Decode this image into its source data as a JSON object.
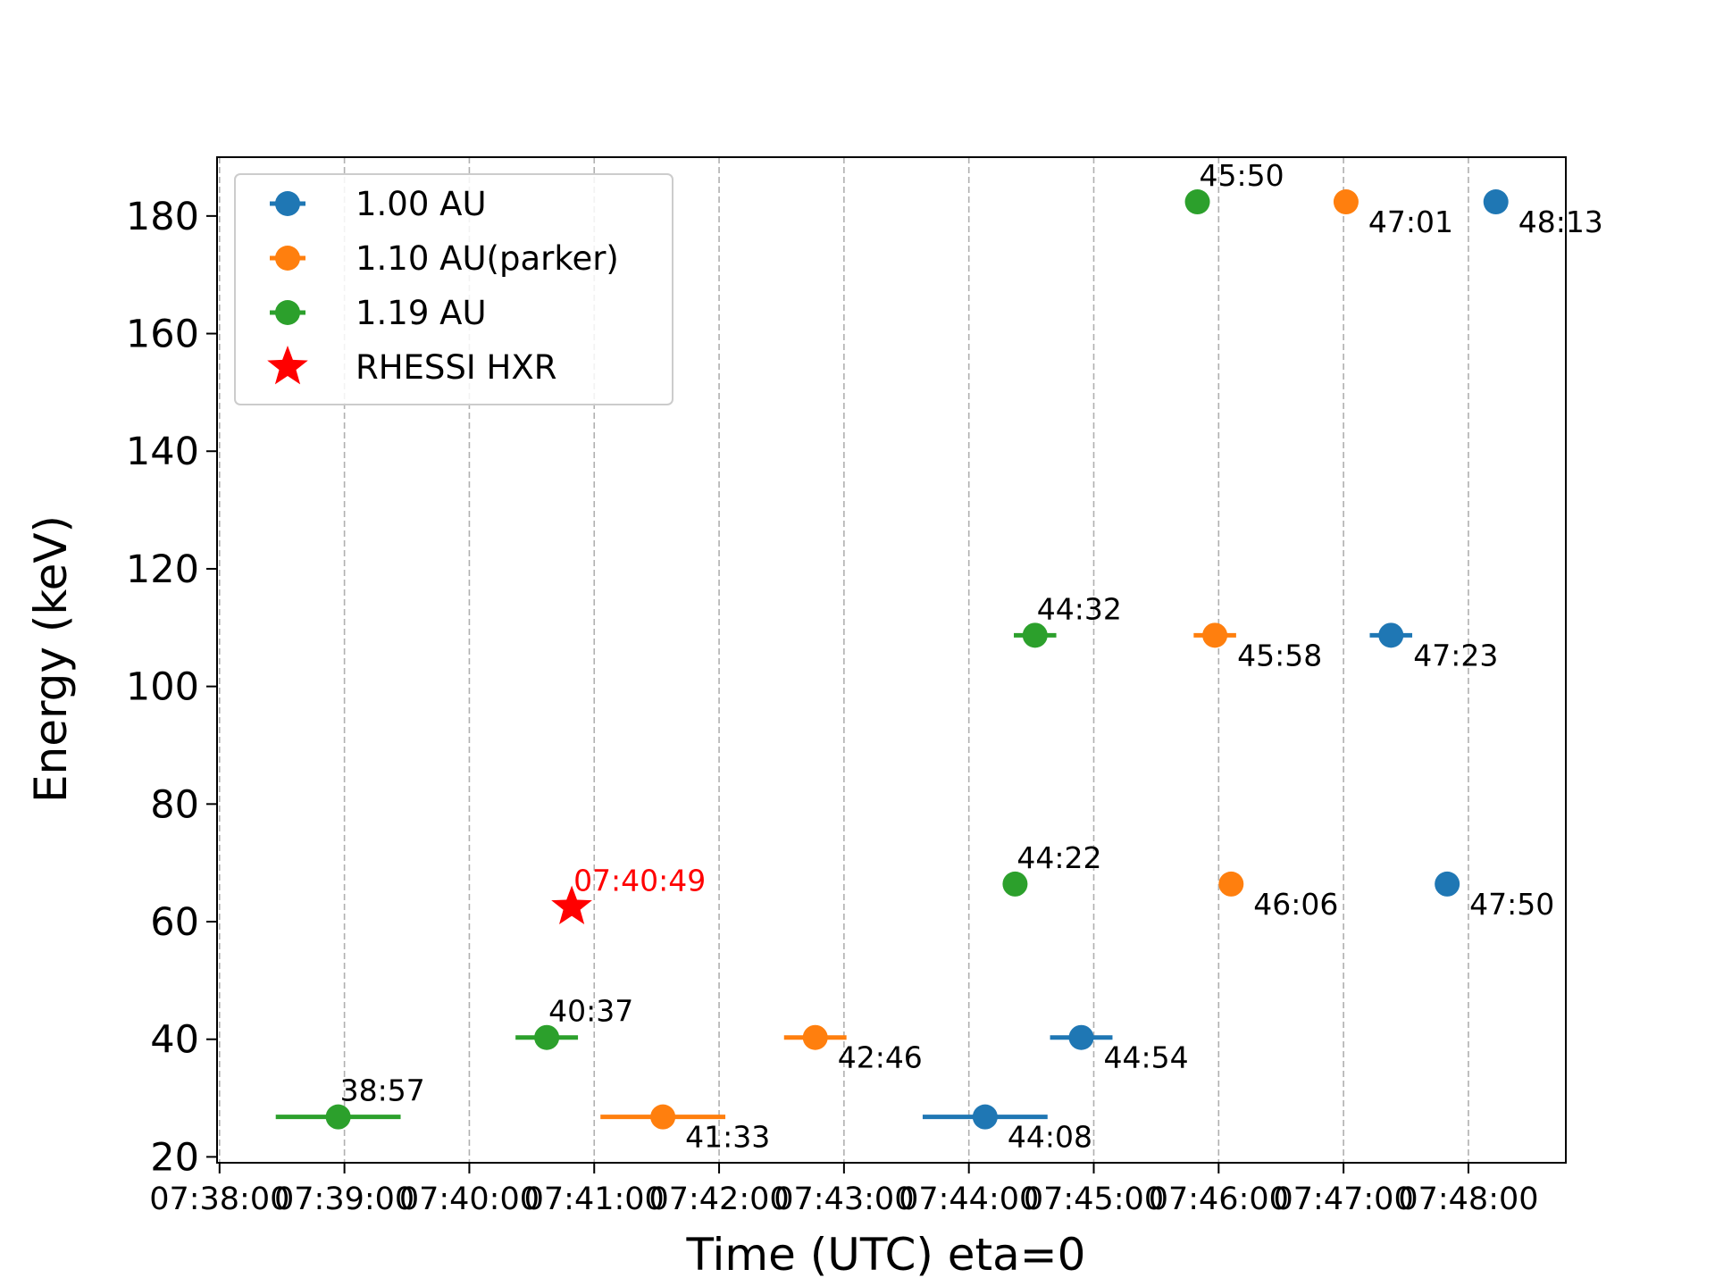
{
  "chart_data": {
    "type": "scatter",
    "title": "",
    "xlabel": "Time (UTC) eta=0",
    "ylabel": "Energy (keV)",
    "xlim": [
      -0.02,
      10.78
    ],
    "ylim": [
      19,
      190
    ],
    "grid": "x-dashed",
    "legend_position": "top-left",
    "xticks": [
      {
        "value": 0,
        "label": "07:38:00"
      },
      {
        "value": 1,
        "label": "07:39:00"
      },
      {
        "value": 2,
        "label": "07:40:00"
      },
      {
        "value": 3,
        "label": "07:41:00"
      },
      {
        "value": 4,
        "label": "07:42:00"
      },
      {
        "value": 5,
        "label": "07:43:00"
      },
      {
        "value": 6,
        "label": "07:44:00"
      },
      {
        "value": 7,
        "label": "07:45:00"
      },
      {
        "value": 8,
        "label": "07:46:00"
      },
      {
        "value": 9,
        "label": "07:47:00"
      },
      {
        "value": 10,
        "label": "07:48:00"
      }
    ],
    "yticks": [
      20,
      40,
      60,
      80,
      100,
      120,
      140,
      160,
      180
    ],
    "x_unit": "minutes after 07:38:00",
    "series": [
      {
        "name": "1.00 AU",
        "color": "#1f77b4",
        "label_offset": "below-right",
        "points": [
          {
            "x": 6.13,
            "y": 26.8,
            "xerr": 0.5,
            "label": "44:08"
          },
          {
            "x": 6.9,
            "y": 40.3,
            "xerr": 0.25,
            "label": "44:54"
          },
          {
            "x": 9.83,
            "y": 66.4,
            "xerr": 0,
            "label": "47:50"
          },
          {
            "x": 9.38,
            "y": 108.7,
            "xerr": 0.17,
            "label": "47:23"
          },
          {
            "x": 10.22,
            "y": 182.4,
            "xerr": 0,
            "label": "48:13"
          }
        ]
      },
      {
        "name": "1.10 AU(parker)",
        "color": "#ff7f0e",
        "label_offset": "below-right",
        "points": [
          {
            "x": 3.55,
            "y": 26.8,
            "xerr": 0.5,
            "label": "41:33"
          },
          {
            "x": 4.77,
            "y": 40.3,
            "xerr": 0.25,
            "label": "42:46"
          },
          {
            "x": 8.1,
            "y": 66.4,
            "xerr": 0,
            "label": "46:06"
          },
          {
            "x": 7.97,
            "y": 108.7,
            "xerr": 0.17,
            "label": "45:58"
          },
          {
            "x": 9.02,
            "y": 182.4,
            "xerr": 0,
            "label": "47:01"
          }
        ]
      },
      {
        "name": "1.19 AU",
        "color": "#2ca02c",
        "label_offset": "above",
        "points": [
          {
            "x": 0.95,
            "y": 26.8,
            "xerr": 0.5,
            "label": "38:57"
          },
          {
            "x": 2.62,
            "y": 40.3,
            "xerr": 0.25,
            "label": "40:37"
          },
          {
            "x": 6.37,
            "y": 66.4,
            "xerr": 0,
            "label": "44:22"
          },
          {
            "x": 6.53,
            "y": 108.7,
            "xerr": 0.17,
            "label": "44:32"
          },
          {
            "x": 7.83,
            "y": 182.4,
            "xerr": 0,
            "label": "45:50"
          }
        ]
      },
      {
        "name": "RHESSI HXR",
        "color": "#ff0000",
        "marker": "star",
        "label_offset": "above",
        "points": [
          {
            "x": 2.82,
            "y": 62.5,
            "xerr": 0,
            "label": "07:40:49"
          }
        ]
      }
    ]
  }
}
